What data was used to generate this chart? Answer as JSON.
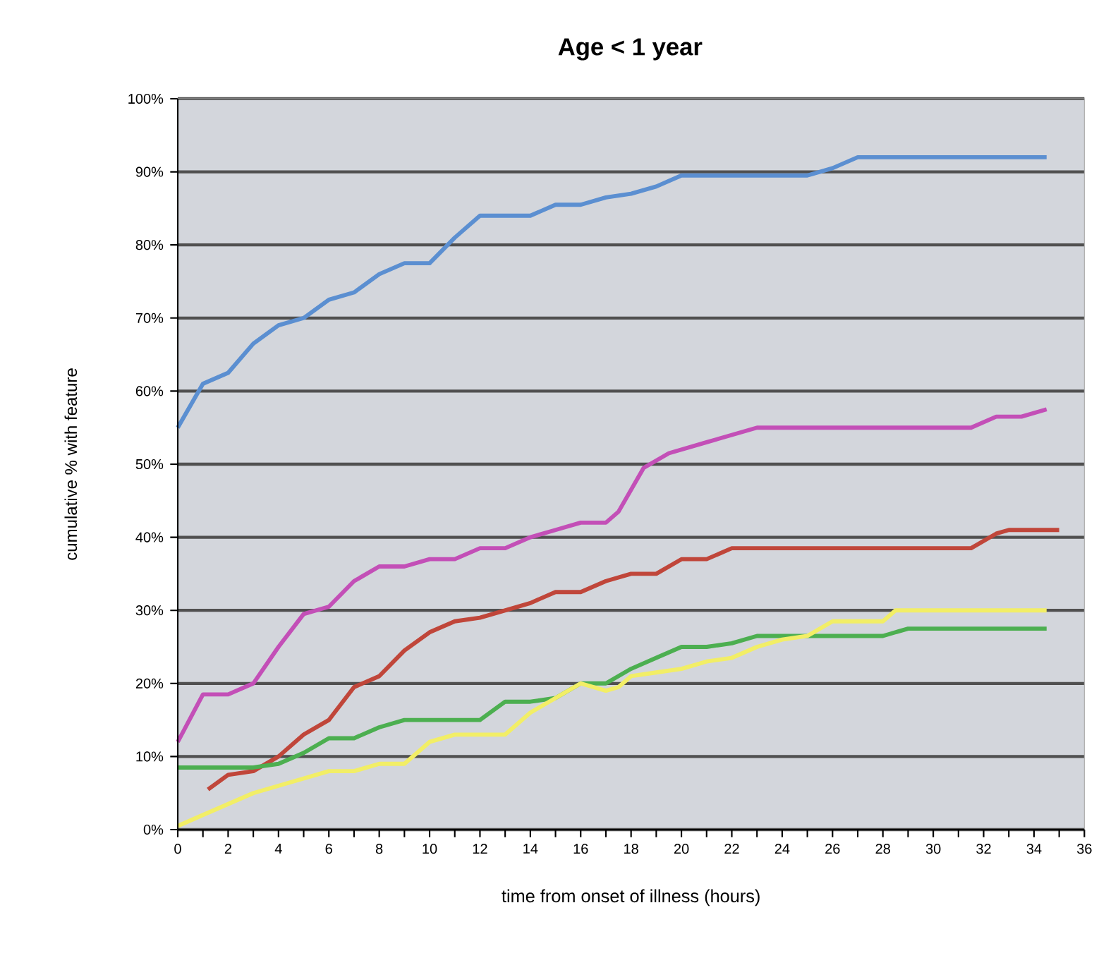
{
  "chart_data": {
    "type": "line",
    "title": "Age < 1 year",
    "xlabel": "time from onset of illness (hours)",
    "ylabel": "cumulative % with feature",
    "xlim": [
      0,
      36
    ],
    "xticks": [
      0,
      {
        "value": 1,
        "label": null
      },
      2,
      {
        "value": 3,
        "label": null
      },
      4,
      {
        "value": 5,
        "label": null
      },
      6,
      {
        "value": 7,
        "label": null
      },
      8,
      {
        "value": 9,
        "label": null
      },
      10,
      {
        "value": 11,
        "label": null
      },
      12,
      {
        "value": 13,
        "label": null
      },
      14,
      {
        "value": 15,
        "label": null
      },
      16,
      {
        "value": 17,
        "label": null
      },
      18,
      {
        "value": 19,
        "label": null
      },
      20,
      {
        "value": 21,
        "label": null
      },
      22,
      {
        "value": 23,
        "label": null
      },
      24,
      {
        "value": 25,
        "label": null
      },
      26,
      {
        "value": 27,
        "label": null
      },
      28,
      {
        "value": 29,
        "label": null
      },
      30,
      {
        "value": 31,
        "label": null
      },
      32,
      {
        "value": 33,
        "label": null
      },
      34,
      {
        "value": 35,
        "label": null
      },
      36
    ],
    "ylim": [
      0,
      100
    ],
    "yticks": [
      {
        "value": 0,
        "label": "0%"
      },
      {
        "value": 10,
        "label": "10%"
      },
      {
        "value": 20,
        "label": "20%"
      },
      {
        "value": 30,
        "label": "30%"
      },
      {
        "value": 40,
        "label": "40%"
      },
      {
        "value": 50,
        "label": "50%"
      },
      {
        "value": 60,
        "label": "60%"
      },
      {
        "value": 70,
        "label": "70%"
      },
      {
        "value": 80,
        "label": "80%"
      },
      {
        "value": 90,
        "label": "90%"
      },
      {
        "value": 100,
        "label": "100%"
      }
    ],
    "grid": "y",
    "marker": "none",
    "line_style": "solid",
    "series": [
      {
        "color": "#5b8fd1",
        "x": [
          0,
          1,
          2,
          3,
          4,
          5,
          6,
          7,
          8,
          9,
          10,
          11,
          12,
          13,
          14,
          15,
          16,
          17,
          18,
          19,
          20,
          21,
          25,
          26,
          27,
          34.5
        ],
        "values": [
          55,
          61,
          62.5,
          66.5,
          69,
          70,
          72.5,
          73.5,
          76,
          77.5,
          77.5,
          81,
          84,
          84,
          84,
          85.5,
          85.5,
          86.5,
          87,
          88,
          89.5,
          89.5,
          89.5,
          90.5,
          92,
          92
        ]
      },
      {
        "color": "#c34fb7",
        "x": [
          0,
          1,
          2,
          3,
          4,
          5,
          6,
          7,
          8,
          9,
          10,
          11,
          12,
          13,
          14,
          15,
          16,
          17,
          17.5,
          18.5,
          19.5,
          21,
          22,
          23,
          31.5,
          32.5,
          33.5,
          34.5
        ],
        "values": [
          12,
          18.5,
          18.5,
          20,
          25,
          29.5,
          30.5,
          34,
          36,
          36,
          37,
          37,
          38.5,
          38.5,
          40,
          41,
          42,
          42,
          43.5,
          49.5,
          51.5,
          53,
          54,
          55,
          55,
          56.5,
          56.5,
          57.5
        ]
      },
      {
        "color": "#c0463a",
        "x": [
          1.2,
          2,
          3,
          4,
          5,
          6,
          7,
          8,
          9,
          10,
          11,
          12,
          13,
          14,
          15,
          16,
          17,
          18,
          19,
          20,
          21,
          22,
          31.5,
          32.5,
          33,
          35
        ],
        "values": [
          5.5,
          7.5,
          8,
          10,
          13,
          15,
          19.5,
          21,
          24.5,
          27,
          28.5,
          29,
          30,
          31,
          32.5,
          32.5,
          34,
          35,
          35,
          37,
          37,
          38.5,
          38.5,
          40.5,
          41,
          41
        ]
      },
      {
        "color": "#4caf50",
        "x": [
          0,
          3,
          4,
          5,
          6,
          7,
          8,
          9,
          10,
          11,
          12,
          13,
          14,
          15,
          16,
          17,
          18,
          19,
          20,
          21,
          22,
          23,
          26,
          28,
          29,
          34.5
        ],
        "values": [
          8.5,
          8.5,
          9,
          10.5,
          12.5,
          12.5,
          14,
          15,
          15,
          15,
          15,
          17.5,
          17.5,
          18,
          20,
          20,
          22,
          23.5,
          25,
          25,
          25.5,
          26.5,
          26.5,
          26.5,
          27.5,
          27.5
        ]
      },
      {
        "color": "#f2ee66",
        "x": [
          0,
          1,
          2,
          3,
          4,
          5,
          6,
          7,
          8,
          9,
          10,
          11,
          12,
          13,
          14,
          15,
          16,
          17,
          17.5,
          18,
          19,
          20,
          21,
          22,
          23,
          24,
          25,
          26,
          28,
          28.5,
          34.5
        ],
        "values": [
          0.5,
          2,
          3.5,
          5,
          6,
          7,
          8,
          8,
          9,
          9,
          12,
          13,
          13,
          13,
          16,
          18,
          20,
          19,
          19.5,
          21,
          21.5,
          22,
          23,
          23.5,
          25,
          26,
          26.5,
          28.5,
          28.5,
          30,
          30
        ]
      }
    ]
  }
}
